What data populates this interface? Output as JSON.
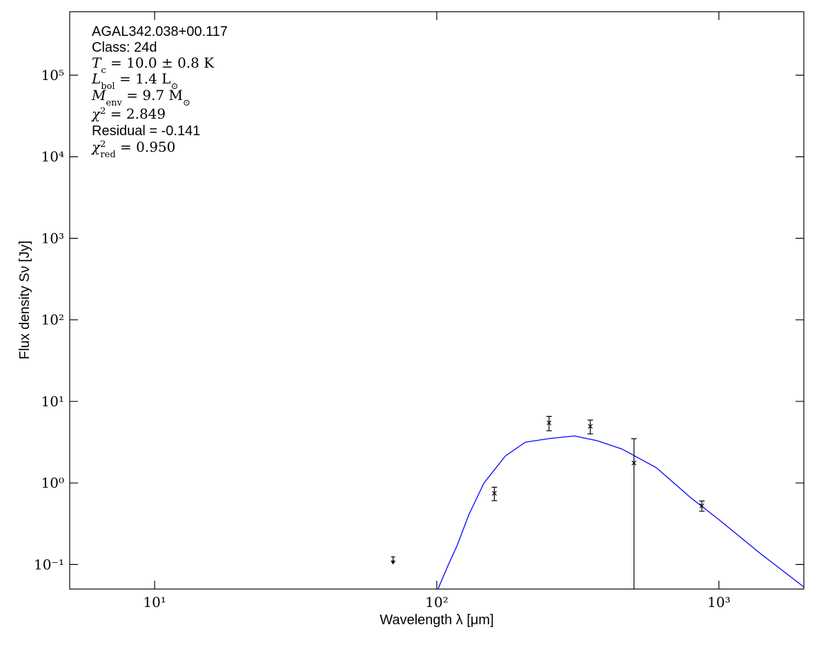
{
  "chart_data": {
    "type": "sed",
    "xlabel": "Wavelength λ [μm]",
    "ylabel": "Flux density Sν [Jy]",
    "log_x": true,
    "log_y": true,
    "xlim": [
      5,
      2000
    ],
    "ylim": [
      0.05,
      600000
    ],
    "xticks": [
      {
        "value": 10,
        "label": "10¹"
      },
      {
        "value": 100,
        "label": "10²"
      },
      {
        "value": 1000,
        "label": "10³"
      }
    ],
    "yticks": [
      {
        "value": 0.1,
        "label": "10⁻¹"
      },
      {
        "value": 1,
        "label": "10⁰"
      },
      {
        "value": 10,
        "label": "10¹"
      },
      {
        "value": 100,
        "label": "10²"
      },
      {
        "value": 1000,
        "label": "10³"
      },
      {
        "value": 10000,
        "label": "10⁴"
      },
      {
        "value": 100000,
        "label": "10⁵"
      }
    ],
    "annotations": [
      [
        {
          "text": "AGAL342.038+00.117"
        }
      ],
      [
        {
          "text": "Class: 24d"
        }
      ],
      [
        {
          "text": "T",
          "italic": true
        },
        {
          "text": "c",
          "shift": "sub"
        },
        {
          "text": " = 10.0 ± 0.8 K"
        }
      ],
      [
        {
          "text": "L",
          "italic": true
        },
        {
          "text": "bol",
          "shift": "sub"
        },
        {
          "text": " = 1.4 L"
        },
        {
          "text": "⊙",
          "shift": "sub"
        }
      ],
      [
        {
          "text": "M",
          "italic": true
        },
        {
          "text": "env",
          "shift": "sub"
        },
        {
          "text": " = 9.7 M"
        },
        {
          "text": "⊙",
          "shift": "sub"
        }
      ],
      [
        {
          "text": "χ",
          "italic": true
        },
        {
          "text": "2",
          "shift": "sup"
        },
        {
          "text": " = 2.849"
        }
      ],
      [
        {
          "text": "Residual = -0.141"
        }
      ],
      [
        {
          "text": "χ",
          "italic": true
        },
        {
          "text": "2",
          "shift": "sup"
        },
        {
          "text": "red",
          "shift": "sub"
        },
        {
          "text": " = 0.950"
        }
      ]
    ],
    "model": {
      "color": "#0000ff",
      "x": [
        101,
        110,
        118,
        130,
        147,
        175,
        206,
        250,
        307,
        370,
        454,
        600,
        794,
        1000,
        1393,
        2000
      ],
      "values": [
        0.05,
        0.1,
        0.17,
        0.41,
        1.0,
        2.14,
        3.16,
        3.5,
        3.77,
        3.3,
        2.6,
        1.54,
        0.66,
        0.355,
        0.139,
        0.053
      ]
    },
    "points": {
      "color": "#000000",
      "x": [
        160,
        250,
        350,
        500,
        870
      ],
      "values": [
        0.746,
        5.46,
        4.95,
        1.76,
        0.525
      ],
      "errors": [
        0.14,
        1.1,
        0.95,
        1.73,
        0.075
      ]
    },
    "upper_limits": {
      "color": "#000000",
      "x": [
        70
      ],
      "values": [
        0.124
      ]
    }
  }
}
